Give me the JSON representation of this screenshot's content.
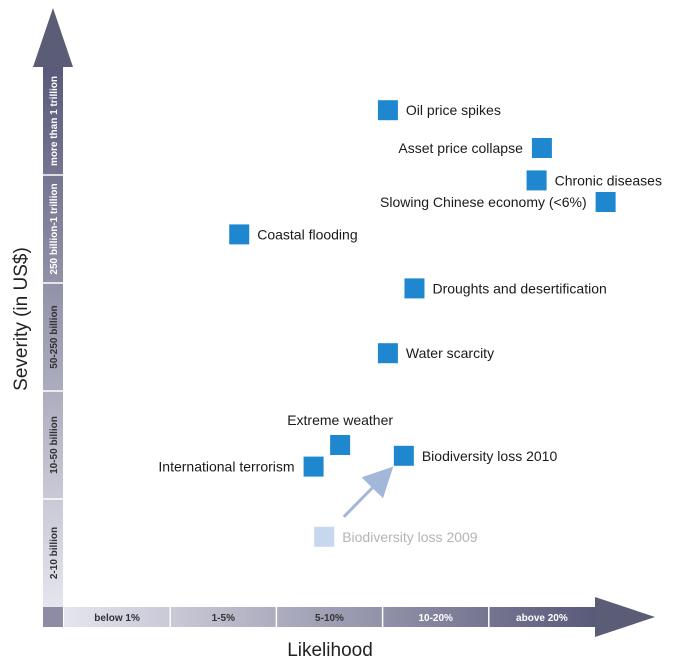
{
  "chart_data": {
    "type": "scatter",
    "xlabel": "Likelihood",
    "ylabel": "Severity (in US$)",
    "x_categories": [
      "below 1%",
      "1-5%",
      "5-10%",
      "10-20%",
      "above 20%"
    ],
    "y_categories": [
      "2-10 billion",
      "10-50 billion",
      "50-250 billion",
      "250 billion-1 trillion",
      "more than 1 trillion"
    ],
    "points": [
      {
        "label": "Oil price spikes",
        "x": 3.05,
        "y": 4.6,
        "label_side": "right",
        "style": "current"
      },
      {
        "label": "Asset price collapse",
        "x": 4.5,
        "y": 4.25,
        "label_side": "left",
        "style": "current"
      },
      {
        "label": "Chronic diseases",
        "x": 4.45,
        "y": 3.95,
        "label_side": "right",
        "style": "current"
      },
      {
        "label": "Slowing Chinese economy (<6%)",
        "x": 5.1,
        "y": 3.75,
        "label_side": "left",
        "style": "current"
      },
      {
        "label": "Coastal flooding",
        "x": 1.65,
        "y": 3.45,
        "label_side": "right",
        "style": "current"
      },
      {
        "label": "Droughts and desertification",
        "x": 3.3,
        "y": 2.95,
        "label_side": "right",
        "style": "current"
      },
      {
        "label": "Water scarcity",
        "x": 3.05,
        "y": 2.35,
        "label_side": "right",
        "style": "current"
      },
      {
        "label": "Extreme weather",
        "x": 2.6,
        "y": 1.5,
        "label_side": "above",
        "style": "current"
      },
      {
        "label": "International terrorism",
        "x": 2.35,
        "y": 1.3,
        "label_side": "left",
        "style": "current"
      },
      {
        "label": "Biodiversity loss 2010",
        "x": 3.2,
        "y": 1.4,
        "label_side": "right",
        "style": "current"
      },
      {
        "label": "Biodiversity loss 2009",
        "x": 2.45,
        "y": 0.65,
        "label_side": "right",
        "style": "previous"
      }
    ],
    "annotations": [
      {
        "type": "arrow",
        "from": "Biodiversity loss 2009",
        "to": "Biodiversity loss 2010"
      }
    ],
    "colors": {
      "marker": "#1f87cf",
      "marker_previous": "#c6d7ee",
      "label_previous": "#b4b4b4",
      "arrow": "#a3b8d8",
      "axis_arrow": "#5b5c76",
      "band_gradient": [
        "#e5e5ee",
        "#59597a"
      ]
    }
  }
}
